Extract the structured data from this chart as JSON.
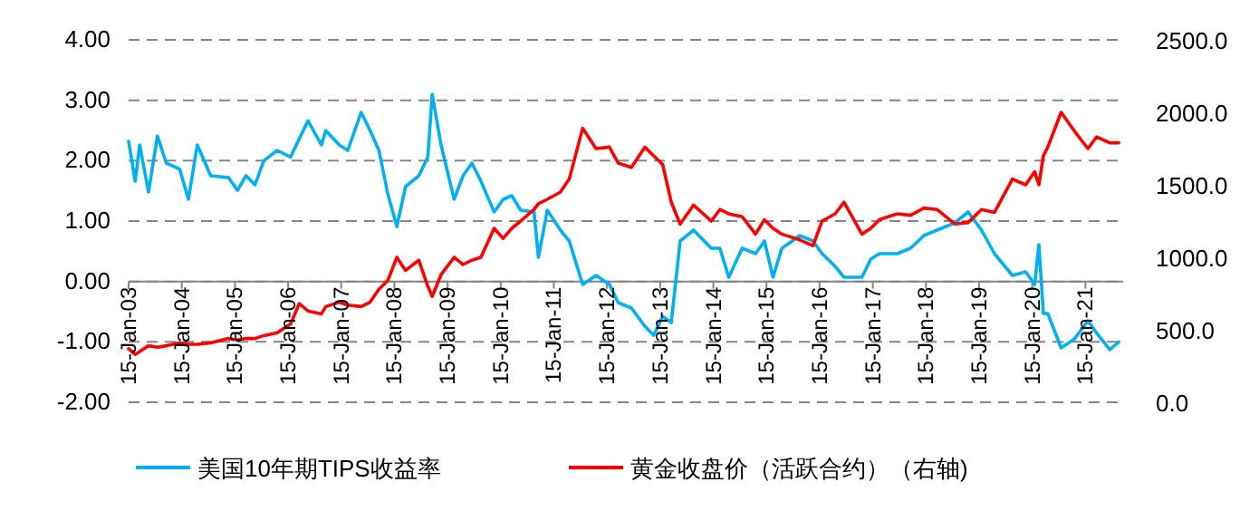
{
  "chart_data": {
    "type": "line",
    "x": [
      "2003-01-15",
      "2003-03",
      "2003-04",
      "2003-06",
      "2003-08",
      "2003-10",
      "2004-01",
      "2004-03",
      "2004-05",
      "2004-08",
      "2004-12",
      "2005-02",
      "2005-04",
      "2005-06",
      "2005-08",
      "2005-11",
      "2006-02",
      "2006-04",
      "2006-06",
      "2006-09",
      "2006-10",
      "2007-01",
      "2007-03",
      "2007-06",
      "2007-08",
      "2007-10",
      "2007-12",
      "2008-02",
      "2008-04",
      "2008-07",
      "2008-09",
      "2008-10",
      "2008-12",
      "2009-03",
      "2009-05",
      "2009-07",
      "2009-09",
      "2009-12",
      "2010-02",
      "2010-04",
      "2010-06",
      "2010-09",
      "2010-10",
      "2010-12",
      "2011-03",
      "2011-05",
      "2011-08",
      "2011-11",
      "2012-02",
      "2012-04",
      "2012-07",
      "2012-10",
      "2012-12",
      "2013-02",
      "2013-04",
      "2013-06",
      "2013-09",
      "2014-01",
      "2014-03",
      "2014-05",
      "2014-08",
      "2014-11",
      "2015-01",
      "2015-03",
      "2015-05",
      "2015-09",
      "2015-12",
      "2016-02",
      "2016-05",
      "2016-07",
      "2016-11",
      "2017-01",
      "2017-03",
      "2017-07",
      "2017-10",
      "2018-01",
      "2018-04",
      "2018-08",
      "2018-11",
      "2019-02",
      "2019-05",
      "2019-09",
      "2019-12",
      "2020-02",
      "2020-03",
      "2020-04",
      "2020-05",
      "2020-08",
      "2020-11",
      "2021-02",
      "2021-04",
      "2021-07",
      "2021-09"
    ],
    "xlim": [
      "2003-01-15",
      "2021-10-01"
    ],
    "xticks": [
      {
        "value": "2003-01-15",
        "label": "15-Jan-03"
      },
      {
        "value": "2004-01-15",
        "label": "15-Jan-04"
      },
      {
        "value": "2005-01-15",
        "label": "15-Jan-05"
      },
      {
        "value": "2006-01-15",
        "label": "15-Jan-06"
      },
      {
        "value": "2007-01-15",
        "label": "15-Jan-07"
      },
      {
        "value": "2008-01-15",
        "label": "15-Jan-08"
      },
      {
        "value": "2009-01-15",
        "label": "15-Jan-09"
      },
      {
        "value": "2010-01-15",
        "label": "15-Jan-10"
      },
      {
        "value": "2011-01-15",
        "label": "15-Jan-11"
      },
      {
        "value": "2012-01-15",
        "label": "15-Jan-12"
      },
      {
        "value": "2013-01-15",
        "label": "15-Jan-13"
      },
      {
        "value": "2014-01-15",
        "label": "15-Jan-14"
      },
      {
        "value": "2015-01-15",
        "label": "15-Jan-15"
      },
      {
        "value": "2016-01-15",
        "label": "15-Jan-16"
      },
      {
        "value": "2017-01-15",
        "label": "15-Jan-17"
      },
      {
        "value": "2018-01-15",
        "label": "15-Jan-18"
      },
      {
        "value": "2019-01-15",
        "label": "15-Jan-19"
      },
      {
        "value": "2020-01-15",
        "label": "15-Jan-20"
      },
      {
        "value": "2021-01-15",
        "label": "15-Jan-21"
      }
    ],
    "ylim": [
      -2,
      4
    ],
    "yticks": [
      {
        "value": -2,
        "label": "-2.00"
      },
      {
        "value": -1,
        "label": "-1.00"
      },
      {
        "value": 0,
        "label": "0.00"
      },
      {
        "value": 1,
        "label": "1.00"
      },
      {
        "value": 2,
        "label": "2.00"
      },
      {
        "value": 3,
        "label": "3.00"
      },
      {
        "value": 4,
        "label": "4.00"
      }
    ],
    "y2lim": [
      0,
      2500
    ],
    "y2ticks": [
      {
        "value": 0,
        "label": "0.0"
      },
      {
        "value": 500,
        "label": "500.0"
      },
      {
        "value": 1000,
        "label": "1000.0"
      },
      {
        "value": 1500,
        "label": "1500.0"
      },
      {
        "value": 2000,
        "label": "2000.0"
      },
      {
        "value": 2500,
        "label": "2500.0"
      }
    ],
    "grid": "y",
    "legend": "bottom",
    "line_style": "solid",
    "series": [
      {
        "name": "美国10年期TIPS收益率",
        "color": "#00b0f0",
        "values": [
          2.32,
          1.66,
          2.26,
          1.48,
          2.41,
          1.96,
          1.86,
          1.36,
          2.26,
          1.75,
          1.72,
          1.51,
          1.75,
          1.6,
          2.0,
          2.17,
          2.06,
          2.36,
          2.66,
          2.26,
          2.5,
          2.26,
          2.17,
          2.8,
          2.5,
          2.17,
          1.45,
          0.91,
          1.57,
          1.75,
          2.06,
          3.1,
          2.26,
          1.36,
          1.75,
          1.96,
          1.66,
          1.15,
          1.36,
          1.42,
          1.18,
          1.15,
          0.4,
          1.18,
          0.85,
          0.67,
          -0.05,
          0.1,
          -0.05,
          -0.35,
          -0.44,
          -0.74,
          -0.89,
          -0.58,
          -0.68,
          0.67,
          0.85,
          0.55,
          0.55,
          0.07,
          0.55,
          0.46,
          0.67,
          0.07,
          0.55,
          0.76,
          0.67,
          0.46,
          0.25,
          0.07,
          0.07,
          0.37,
          0.46,
          0.46,
          0.55,
          0.76,
          0.85,
          0.97,
          1.15,
          0.85,
          0.46,
          0.1,
          0.16,
          -0.05,
          0.61,
          -0.53,
          -0.53,
          -1.1,
          -0.95,
          -0.65,
          -0.85,
          -1.13,
          -1.0
        ]
      },
      {
        "name": "黄金收盘价（活跃合约）（右轴)",
        "color": "#ff0000",
        "axis": "y2",
        "values": [
          370,
          330,
          350,
          390,
          380,
          390,
          410,
          400,
          400,
          410,
          440,
          430,
          440,
          440,
          460,
          480,
          540,
          680,
          630,
          610,
          660,
          690,
          670,
          660,
          690,
          780,
          840,
          1000,
          910,
          980,
          800,
          730,
          880,
          1000,
          950,
          980,
          1000,
          1200,
          1130,
          1200,
          1250,
          1330,
          1370,
          1400,
          1450,
          1540,
          1890,
          1750,
          1760,
          1650,
          1620,
          1760,
          1700,
          1640,
          1380,
          1230,
          1360,
          1250,
          1330,
          1300,
          1280,
          1160,
          1260,
          1200,
          1160,
          1120,
          1080,
          1250,
          1300,
          1380,
          1160,
          1200,
          1260,
          1300,
          1290,
          1340,
          1330,
          1230,
          1240,
          1330,
          1310,
          1540,
          1500,
          1590,
          1500,
          1700,
          1760,
          2000,
          1870,
          1750,
          1830,
          1790,
          1790
        ]
      }
    ]
  }
}
